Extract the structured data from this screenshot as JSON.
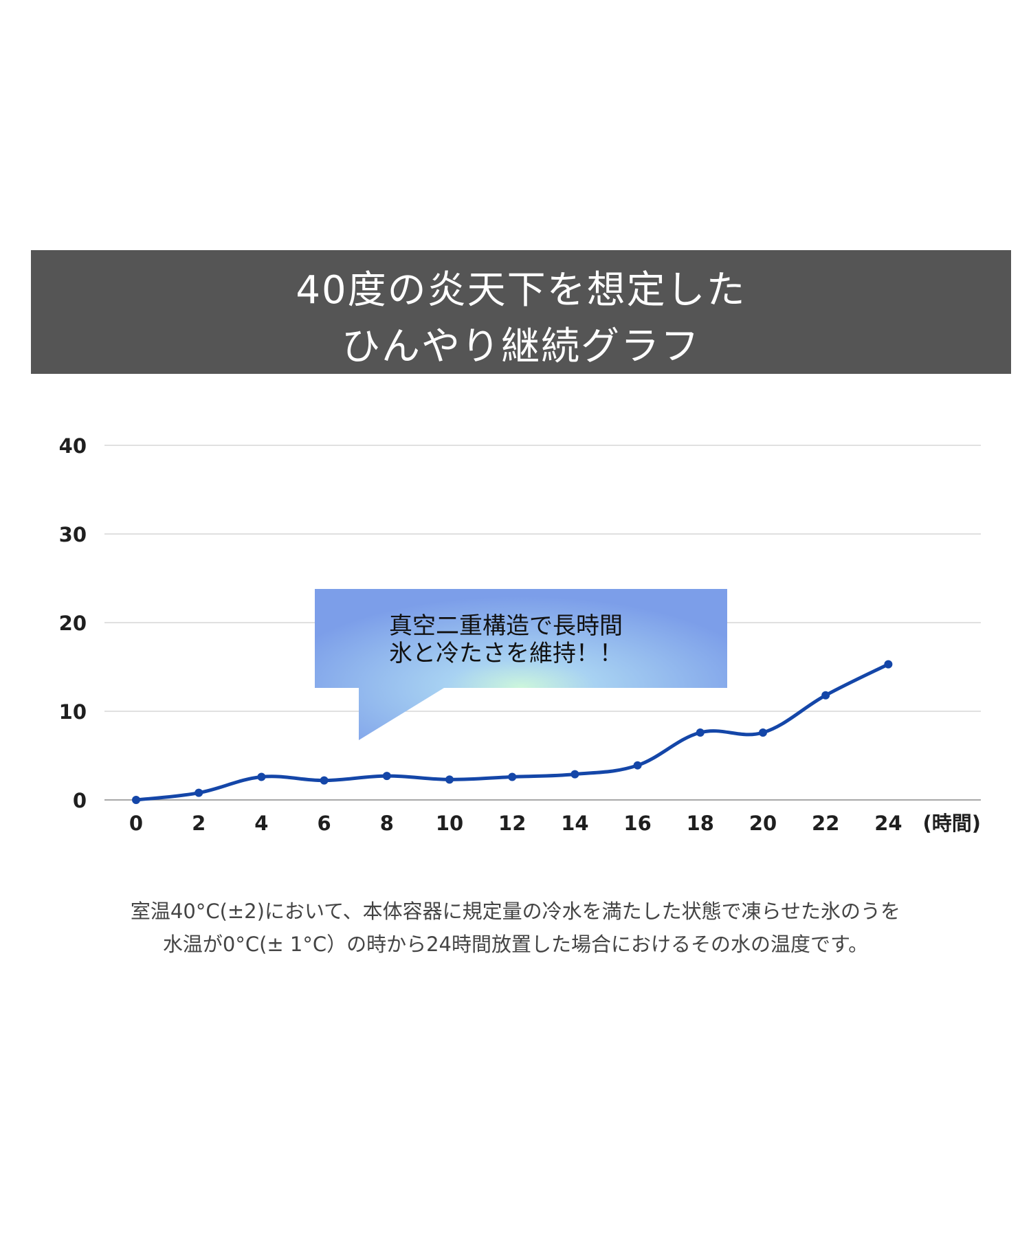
{
  "header": {
    "title_line1": "40度の炎天下を想定した",
    "title_line2": "ひんやり継続グラフ"
  },
  "chart_data": {
    "type": "line",
    "x": [
      0,
      2,
      4,
      6,
      8,
      10,
      12,
      14,
      16,
      18,
      20,
      22,
      24
    ],
    "series": [
      {
        "values": [
          0,
          0.8,
          2.6,
          2.2,
          2.7,
          2.3,
          2.6,
          2.9,
          3.9,
          7.6,
          7.6,
          11.8,
          15.3
        ]
      }
    ],
    "xlabel": "(時間)",
    "ylabel": "",
    "xticks": [
      "0",
      "2",
      "4",
      "6",
      "8",
      "10",
      "12",
      "14",
      "16",
      "18",
      "20",
      "22",
      "24"
    ],
    "yticks": [
      "0",
      "10",
      "20",
      "30",
      "40"
    ],
    "ylim": [
      0,
      40
    ],
    "xlim": [
      0,
      26
    ],
    "grid": true,
    "line_color": "#1446a8",
    "annotation": {
      "line1": "真空二重構造で長時間",
      "line2": "氷と冷たさを維持！！"
    }
  },
  "caption": {
    "line1": "室温40°C(±2)において、本体容器に規定量の冷水を満たした状態で凍らせた氷のうを",
    "line2": "水温が0°C(± 1°C）の時から24時間放置した場合におけるその水の温度です。"
  }
}
